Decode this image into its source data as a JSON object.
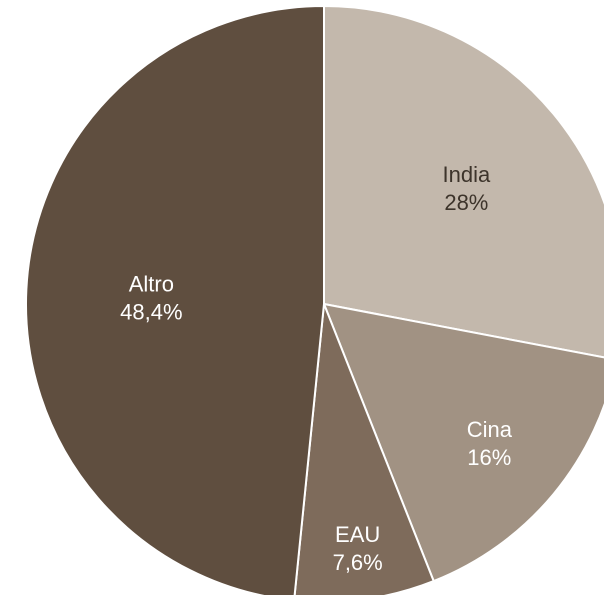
{
  "chart_data": {
    "type": "pie",
    "slices": [
      {
        "label": "India",
        "value": 28,
        "value_label": "28%",
        "color": "#c3b8ac",
        "text_color": "#3d342b"
      },
      {
        "label": "Cina",
        "value": 16,
        "value_label": "16%",
        "color": "#a19283",
        "text_color": "#ffffff"
      },
      {
        "label": "EAU",
        "value": 7.6,
        "value_label": "7,6%",
        "color": "#7e6b5b",
        "text_color": "#ffffff"
      },
      {
        "label": "Altro",
        "value": 48.4,
        "value_label": "48,4%",
        "color": "#5f4e3f",
        "text_color": "#ffffff"
      }
    ]
  }
}
